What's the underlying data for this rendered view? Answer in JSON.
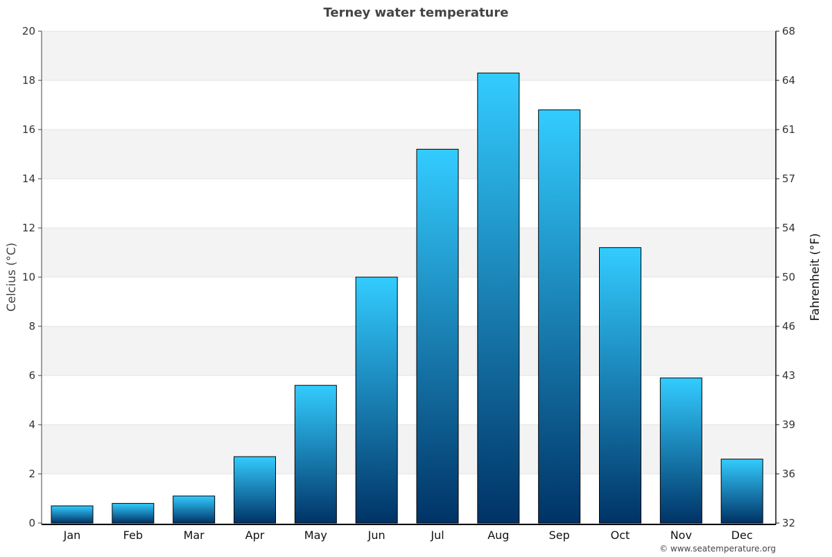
{
  "chart_data": {
    "type": "bar",
    "title": "Terney water temperature",
    "categories": [
      "Jan",
      "Feb",
      "Mar",
      "Apr",
      "May",
      "Jun",
      "Jul",
      "Aug",
      "Sep",
      "Oct",
      "Nov",
      "Dec"
    ],
    "values": [
      0.7,
      0.8,
      1.1,
      2.7,
      5.6,
      10.0,
      15.2,
      18.3,
      16.8,
      11.2,
      5.9,
      2.6
    ],
    "ylabel": "Celcius (°C)",
    "ylabel_right": "Fahrenheit (°F)",
    "ylim": [
      0,
      20
    ],
    "yticks": [
      "0",
      "2",
      "4",
      "6",
      "8",
      "10",
      "12",
      "14",
      "16",
      "18",
      "20"
    ],
    "yticks_right": [
      "32",
      "36",
      "39",
      "43",
      "46",
      "50",
      "54",
      "57",
      "61",
      "64",
      "68"
    ],
    "grid": true,
    "bar_color_top": "#33ccff",
    "bar_color_bottom": "#003366",
    "band_color": "#f3f3f3"
  },
  "credit": "© www.seatemperature.org"
}
